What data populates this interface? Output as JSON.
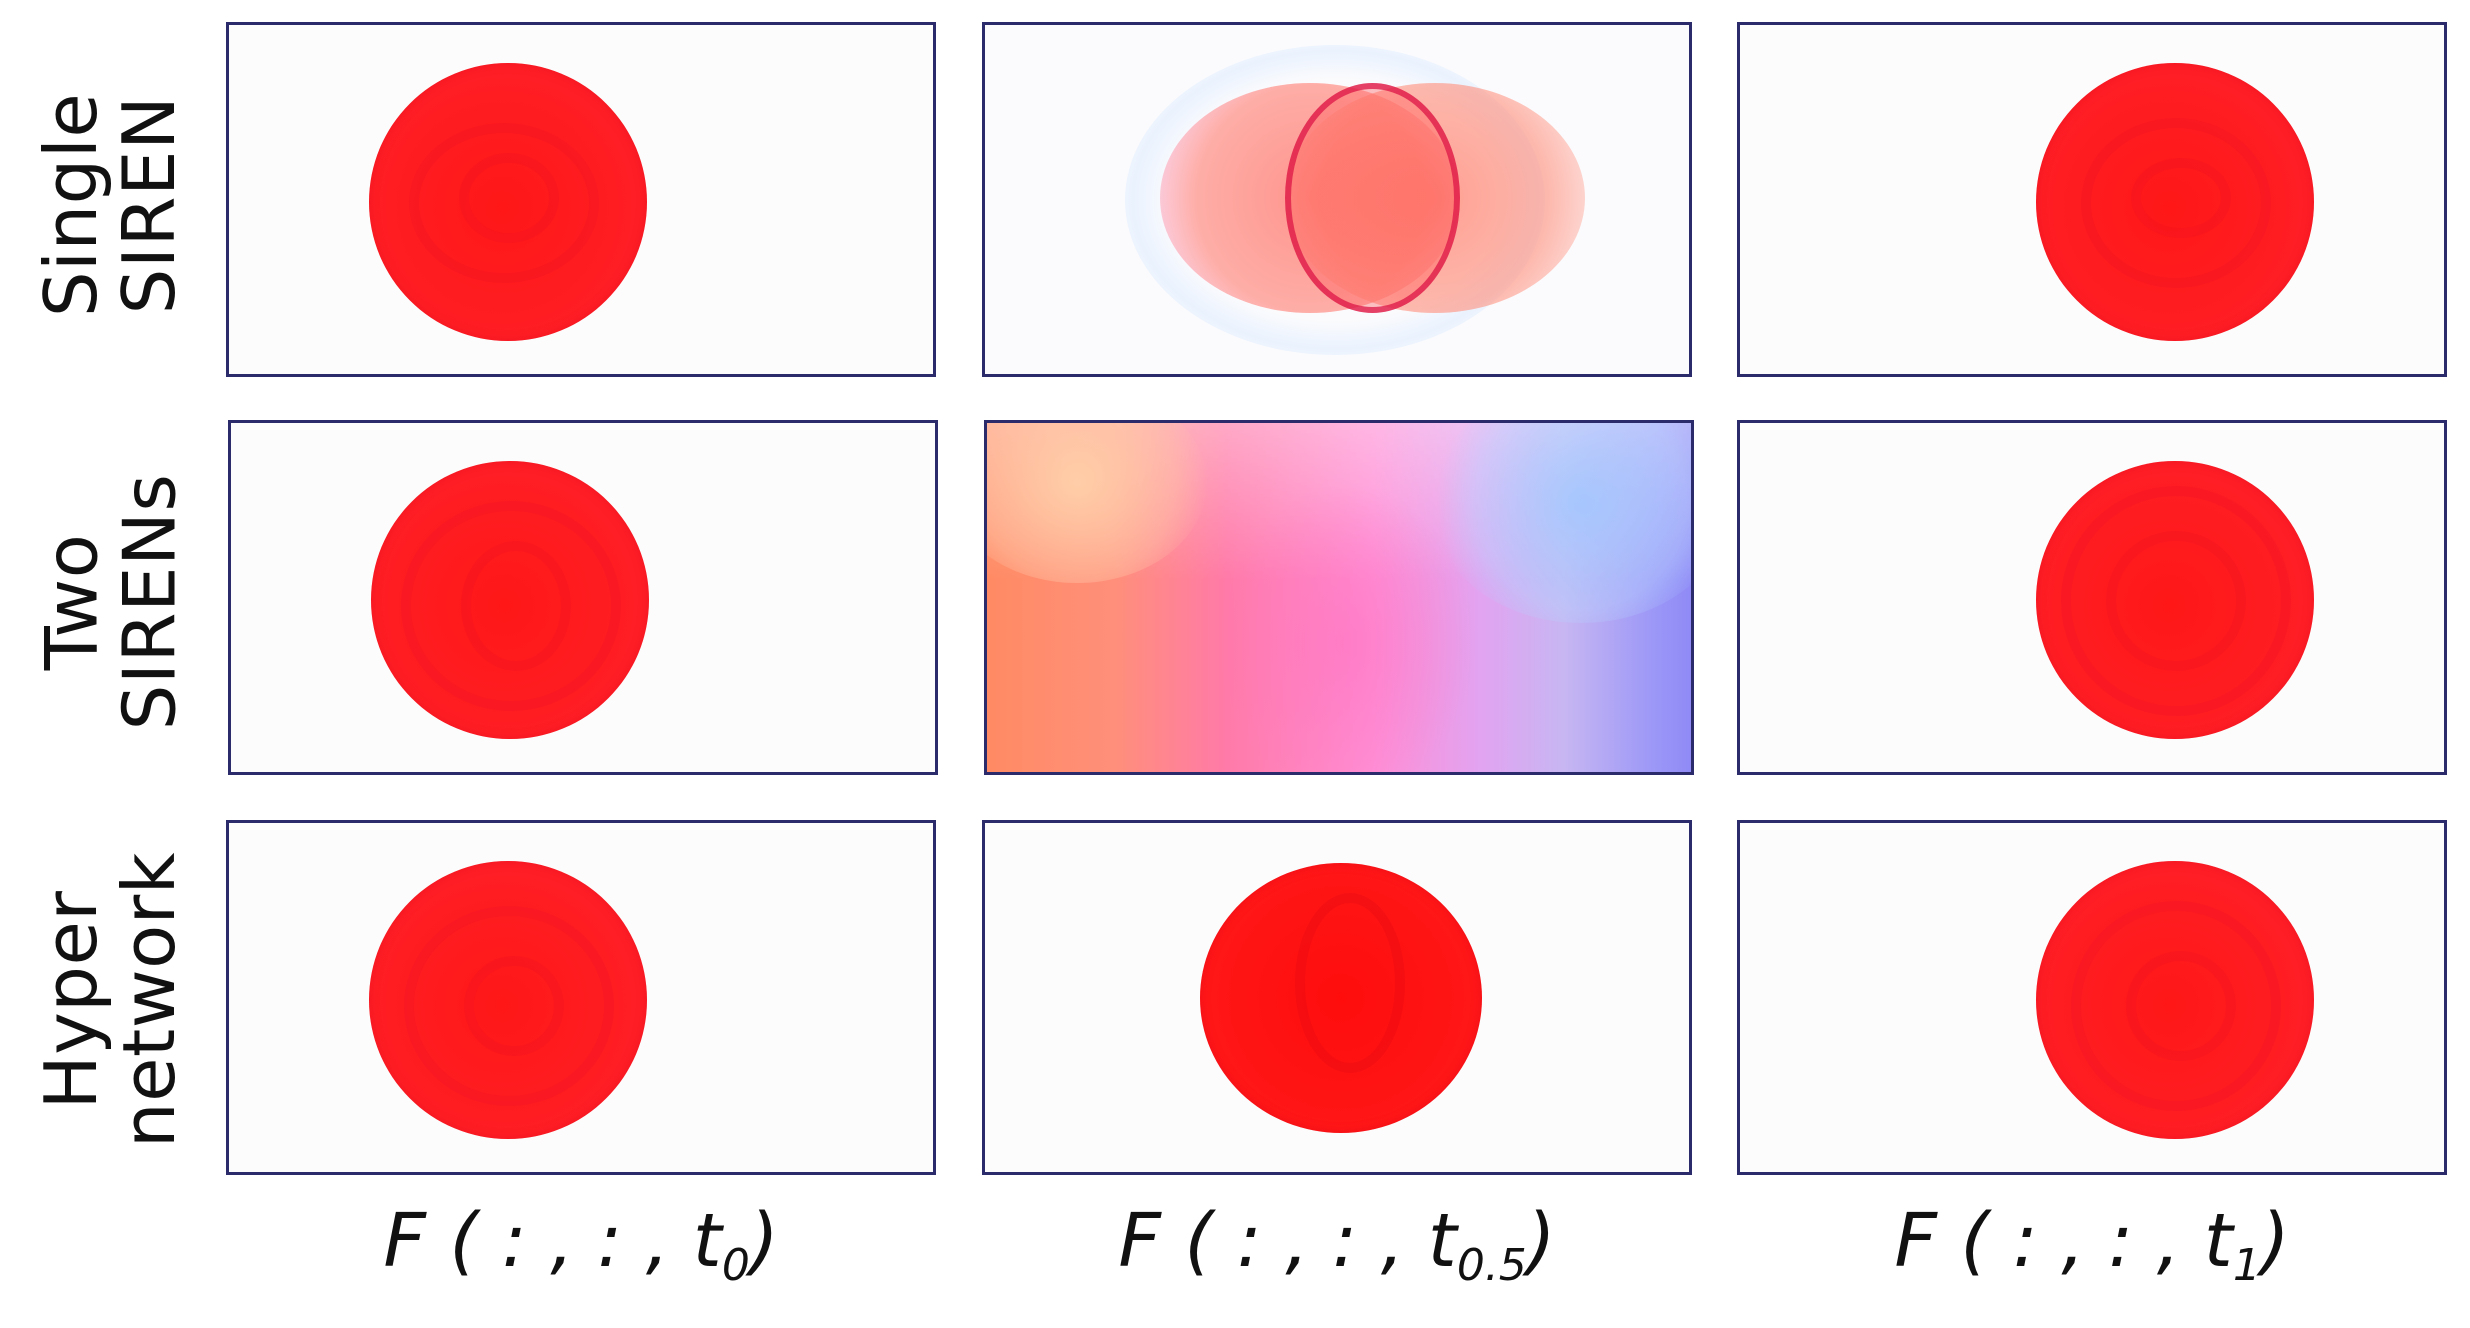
{
  "rows": [
    {
      "line1": "Single",
      "line2": "SIREN"
    },
    {
      "line1": "Two",
      "line2": "SIRENs"
    },
    {
      "line1": "Hyper",
      "line2": "network"
    }
  ],
  "columns": [
    {
      "prefix": "F ( : , : , t",
      "sub": "0",
      "suffix": ")"
    },
    {
      "prefix": "F ( : , : , t",
      "sub": "0.5",
      "suffix": ")"
    },
    {
      "prefix": "F ( : , : , t",
      "sub": "1",
      "suffix": ")"
    }
  ],
  "colors": {
    "disk": "#ff1a1f",
    "frame": "#2b2a6b"
  }
}
